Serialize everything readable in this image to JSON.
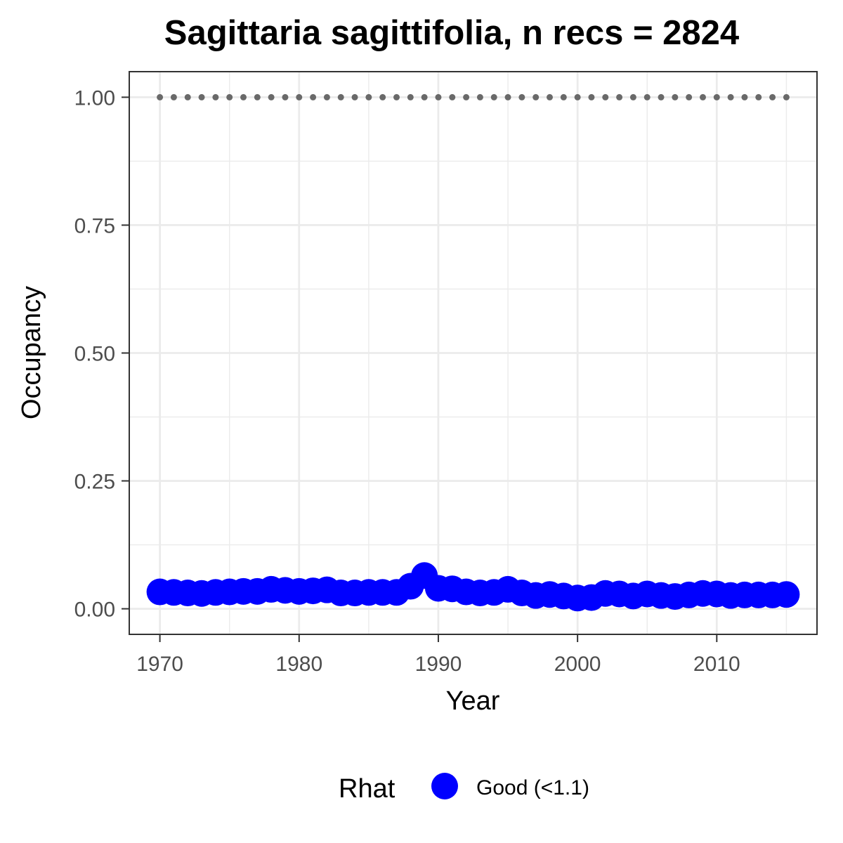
{
  "chart_data": {
    "type": "scatter",
    "title": "Sagittaria sagittifolia, n recs = 2824",
    "xlabel": "Year",
    "ylabel": "Occupancy",
    "xlim": [
      1967.8,
      2017.2
    ],
    "ylim": [
      -0.05,
      1.05
    ],
    "x_ticks": [
      1970,
      1980,
      1990,
      2000,
      2010
    ],
    "x_tick_labels": [
      "1970",
      "1980",
      "1990",
      "2000",
      "2010"
    ],
    "y_ticks": [
      0,
      0.25,
      0.5,
      0.75,
      1.0
    ],
    "y_tick_labels": [
      "0.00",
      "0.25",
      "0.50",
      "0.75",
      "1.00"
    ],
    "grid": true,
    "legend_position": "bottom",
    "series": [
      {
        "name": "Good (<1.1)",
        "color": "#0000ff",
        "marker": "large-circle",
        "x": [
          1970,
          1971,
          1972,
          1973,
          1974,
          1975,
          1976,
          1977,
          1978,
          1979,
          1980,
          1981,
          1982,
          1983,
          1984,
          1985,
          1986,
          1987,
          1988,
          1989,
          1990,
          1991,
          1992,
          1993,
          1994,
          1995,
          1996,
          1997,
          1998,
          1999,
          2000,
          2001,
          2002,
          2003,
          2004,
          2005,
          2006,
          2007,
          2008,
          2009,
          2010,
          2011,
          2012,
          2013,
          2014,
          2015
        ],
        "y": [
          0.033,
          0.032,
          0.031,
          0.03,
          0.032,
          0.033,
          0.034,
          0.034,
          0.038,
          0.036,
          0.034,
          0.035,
          0.037,
          0.031,
          0.031,
          0.032,
          0.032,
          0.032,
          0.044,
          0.065,
          0.04,
          0.039,
          0.033,
          0.031,
          0.032,
          0.038,
          0.031,
          0.026,
          0.028,
          0.025,
          0.021,
          0.022,
          0.03,
          0.029,
          0.025,
          0.029,
          0.026,
          0.024,
          0.027,
          0.03,
          0.029,
          0.026,
          0.027,
          0.027,
          0.027,
          0.028
        ]
      },
      {
        "name": "",
        "color": "#696969",
        "marker": "small-dot",
        "x": [
          1970,
          1971,
          1972,
          1973,
          1974,
          1975,
          1976,
          1977,
          1978,
          1979,
          1980,
          1981,
          1982,
          1983,
          1984,
          1985,
          1986,
          1987,
          1988,
          1989,
          1990,
          1991,
          1992,
          1993,
          1994,
          1995,
          1996,
          1997,
          1998,
          1999,
          2000,
          2001,
          2002,
          2003,
          2004,
          2005,
          2006,
          2007,
          2008,
          2009,
          2010,
          2011,
          2012,
          2013,
          2014,
          2015
        ],
        "y": [
          1,
          1,
          1,
          1,
          1,
          1,
          1,
          1,
          1,
          1,
          1,
          1,
          1,
          1,
          1,
          1,
          1,
          1,
          1,
          1,
          1,
          1,
          1,
          1,
          1,
          1,
          1,
          1,
          1,
          1,
          1,
          1,
          1,
          1,
          1,
          1,
          1,
          1,
          1,
          1,
          1,
          1,
          1,
          1,
          1,
          1
        ]
      }
    ],
    "legend": {
      "title": "Rhat",
      "entries": [
        {
          "label": "Good (<1.1)",
          "color": "#0000ff"
        }
      ]
    }
  }
}
